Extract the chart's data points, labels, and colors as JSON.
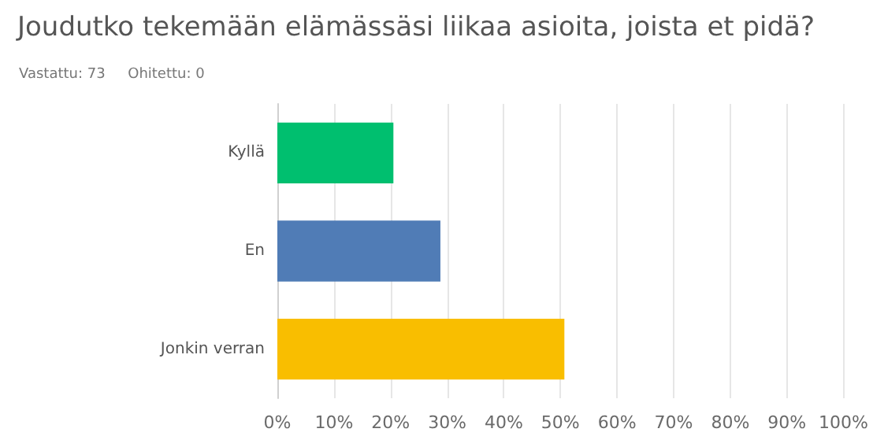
{
  "chart_data": {
    "type": "bar",
    "orientation": "horizontal",
    "title": "Joudutko tekemään elämässäsi liikaa asioita, joista et pidä?",
    "subtitle": "Vastattu: 73     Ohitettu: 0",
    "categories": [
      "Kyllä",
      "En",
      "Jonkin verran"
    ],
    "values": [
      20.5,
      28.8,
      50.7
    ],
    "colors": [
      "#00bf6f",
      "#507cb6",
      "#f9be00"
    ],
    "xlim": [
      0,
      100
    ],
    "xticks": [
      {
        "value": 0,
        "label": "0%"
      },
      {
        "value": 10,
        "label": "10%"
      },
      {
        "value": 20,
        "label": "20%"
      },
      {
        "value": 30,
        "label": "30%"
      },
      {
        "value": 40,
        "label": "40%"
      },
      {
        "value": 50,
        "label": "50%"
      },
      {
        "value": 60,
        "label": "60%"
      },
      {
        "value": 70,
        "label": "70%"
      },
      {
        "value": 80,
        "label": "80%"
      },
      {
        "value": 90,
        "label": "90%"
      },
      {
        "value": 100,
        "label": "100%"
      }
    ],
    "grid": "x"
  }
}
